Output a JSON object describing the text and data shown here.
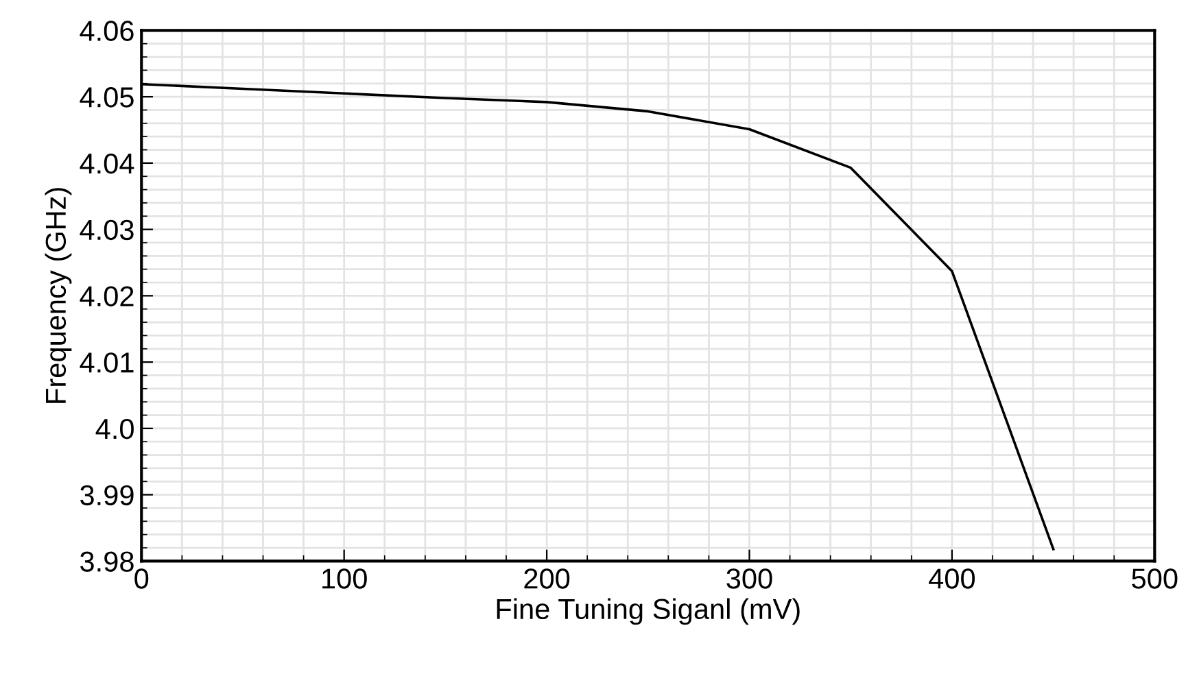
{
  "chart_data": {
    "type": "line",
    "xlabel": "Fine Tuning Siganl (mV)",
    "ylabel": "Frequency (GHz)",
    "x": [
      0,
      50,
      100,
      150,
      200,
      250,
      300,
      350,
      400,
      450
    ],
    "series": [
      {
        "color": "#000000",
        "values": [
          4.0519,
          4.0512,
          4.0505,
          4.0498,
          4.0492,
          4.0478,
          4.0451,
          4.0393,
          4.0237,
          3.9818
        ]
      }
    ],
    "xlim": [
      0,
      500
    ],
    "xticks": [
      0,
      100,
      200,
      300,
      400,
      500
    ],
    "ylim": [
      3.98,
      4.06
    ],
    "yticks": [
      {
        "value": 3.98,
        "label": "3.98"
      },
      {
        "value": 3.99,
        "label": "3.99"
      },
      {
        "value": 4.0,
        "label": "4.0"
      },
      {
        "value": 4.01,
        "label": "4.01"
      },
      {
        "value": 4.02,
        "label": "4.02"
      },
      {
        "value": 4.03,
        "label": "4.03"
      },
      {
        "value": 4.04,
        "label": "4.04"
      },
      {
        "value": 4.05,
        "label": "4.05"
      },
      {
        "value": 4.06,
        "label": "4.06"
      }
    ],
    "grid": true,
    "marker": "none",
    "line_style": "solid"
  }
}
